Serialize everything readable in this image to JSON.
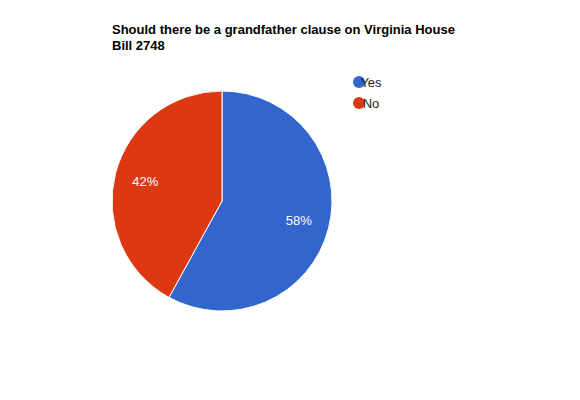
{
  "chart_data": {
    "type": "pie",
    "title": "Should there be a grandfather clause on Virginia House Bill 2748",
    "categories": [
      "Yes",
      "No"
    ],
    "values": [
      58,
      42
    ],
    "colors": [
      "#3366cc",
      "#dc3912"
    ],
    "data_labels": true,
    "value_labels": [
      "58%",
      "42%"
    ],
    "legend": "top-right"
  }
}
